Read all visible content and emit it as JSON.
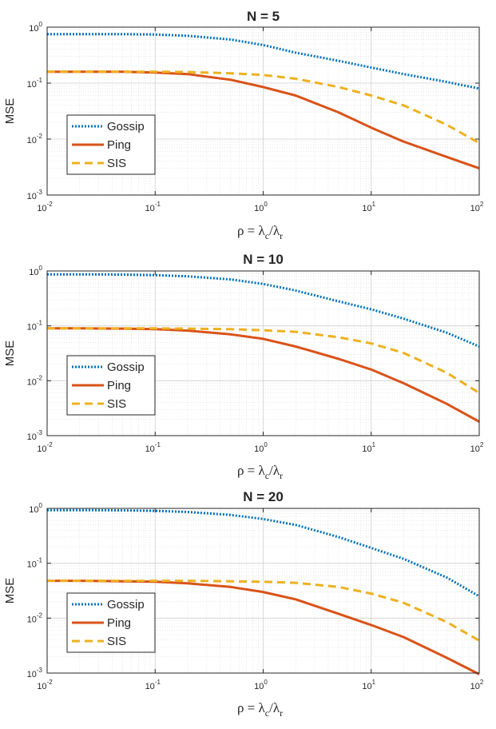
{
  "chart_data": [
    {
      "type": "line",
      "title": "N = 5",
      "xlabel": "ρ = λc/λr",
      "ylabel": "MSE",
      "xscale": "log",
      "yscale": "log",
      "xlim": [
        0.01,
        100
      ],
      "ylim": [
        0.001,
        1
      ],
      "grid": true,
      "legend_position": "lower-left",
      "x_ticks": [
        {
          "base": "10",
          "exp": "-2"
        },
        {
          "base": "10",
          "exp": "-1"
        },
        {
          "base": "10",
          "exp": "0"
        },
        {
          "base": "10",
          "exp": "1"
        },
        {
          "base": "10",
          "exp": "2"
        }
      ],
      "y_ticks": [
        {
          "base": "10",
          "exp": "-3"
        },
        {
          "base": "10",
          "exp": "-2"
        },
        {
          "base": "10",
          "exp": "-1"
        },
        {
          "base": "10",
          "exp": "0"
        }
      ],
      "x": [
        0.01,
        0.02,
        0.05,
        0.1,
        0.2,
        0.5,
        1,
        2,
        5,
        10,
        20,
        50,
        100
      ],
      "series": [
        {
          "name": "Gossip",
          "color": "#0072BD",
          "style": "dotted",
          "values": [
            0.75,
            0.75,
            0.75,
            0.74,
            0.7,
            0.6,
            0.48,
            0.35,
            0.25,
            0.19,
            0.145,
            0.105,
            0.08
          ]
        },
        {
          "name": "Ping",
          "color": "#D95319",
          "style": "solid",
          "values": [
            0.16,
            0.16,
            0.16,
            0.155,
            0.145,
            0.115,
            0.085,
            0.06,
            0.03,
            0.016,
            0.009,
            0.0048,
            0.003
          ]
        },
        {
          "name": "SIS",
          "color": "#EDB120",
          "style": "dashed",
          "values": [
            0.16,
            0.16,
            0.16,
            0.16,
            0.158,
            0.15,
            0.14,
            0.12,
            0.085,
            0.06,
            0.04,
            0.018,
            0.0085
          ]
        }
      ]
    },
    {
      "type": "line",
      "title": "N = 10",
      "xlabel": "ρ = λc/λr",
      "ylabel": "MSE",
      "xscale": "log",
      "yscale": "log",
      "xlim": [
        0.01,
        100
      ],
      "ylim": [
        0.001,
        1
      ],
      "grid": true,
      "legend_position": "lower-left",
      "x_ticks": [
        {
          "base": "10",
          "exp": "-2"
        },
        {
          "base": "10",
          "exp": "-1"
        },
        {
          "base": "10",
          "exp": "0"
        },
        {
          "base": "10",
          "exp": "1"
        },
        {
          "base": "10",
          "exp": "2"
        }
      ],
      "y_ticks": [
        {
          "base": "10",
          "exp": "-3"
        },
        {
          "base": "10",
          "exp": "-2"
        },
        {
          "base": "10",
          "exp": "-1"
        },
        {
          "base": "10",
          "exp": "0"
        }
      ],
      "x": [
        0.01,
        0.02,
        0.05,
        0.1,
        0.2,
        0.5,
        1,
        2,
        5,
        10,
        20,
        50,
        100
      ],
      "series": [
        {
          "name": "Gossip",
          "color": "#0072BD",
          "style": "dotted",
          "values": [
            0.87,
            0.87,
            0.86,
            0.84,
            0.8,
            0.7,
            0.58,
            0.44,
            0.28,
            0.2,
            0.135,
            0.075,
            0.042
          ]
        },
        {
          "name": "Ping",
          "color": "#D95319",
          "style": "solid",
          "values": [
            0.09,
            0.09,
            0.089,
            0.087,
            0.082,
            0.07,
            0.058,
            0.042,
            0.025,
            0.016,
            0.009,
            0.0038,
            0.0018
          ]
        },
        {
          "name": "SIS",
          "color": "#EDB120",
          "style": "dashed",
          "values": [
            0.09,
            0.09,
            0.09,
            0.09,
            0.089,
            0.087,
            0.083,
            0.078,
            0.062,
            0.048,
            0.032,
            0.014,
            0.006
          ]
        }
      ]
    },
    {
      "type": "line",
      "title": "N = 20",
      "xlabel": "ρ = λc/λr",
      "ylabel": "MSE",
      "xscale": "log",
      "yscale": "log",
      "xlim": [
        0.01,
        100
      ],
      "ylim": [
        0.001,
        1
      ],
      "grid": true,
      "legend_position": "lower-left",
      "x_ticks": [
        {
          "base": "10",
          "exp": "-2"
        },
        {
          "base": "10",
          "exp": "-1"
        },
        {
          "base": "10",
          "exp": "0"
        },
        {
          "base": "10",
          "exp": "1"
        },
        {
          "base": "10",
          "exp": "2"
        }
      ],
      "y_ticks": [
        {
          "base": "10",
          "exp": "-3"
        },
        {
          "base": "10",
          "exp": "-2"
        },
        {
          "base": "10",
          "exp": "-1"
        },
        {
          "base": "10",
          "exp": "0"
        }
      ],
      "x": [
        0.01,
        0.02,
        0.05,
        0.1,
        0.2,
        0.5,
        1,
        2,
        5,
        10,
        20,
        50,
        100
      ],
      "series": [
        {
          "name": "Gossip",
          "color": "#0072BD",
          "style": "dotted",
          "values": [
            0.93,
            0.93,
            0.92,
            0.9,
            0.86,
            0.76,
            0.64,
            0.5,
            0.3,
            0.19,
            0.12,
            0.055,
            0.025
          ]
        },
        {
          "name": "Ping",
          "color": "#D95319",
          "style": "solid",
          "values": [
            0.048,
            0.048,
            0.047,
            0.046,
            0.043,
            0.037,
            0.03,
            0.022,
            0.012,
            0.0075,
            0.0045,
            0.0019,
            0.00095
          ]
        },
        {
          "name": "SIS",
          "color": "#EDB120",
          "style": "dashed",
          "values": [
            0.048,
            0.048,
            0.048,
            0.048,
            0.048,
            0.047,
            0.046,
            0.044,
            0.037,
            0.028,
            0.019,
            0.0085,
            0.0039
          ]
        }
      ]
    }
  ]
}
